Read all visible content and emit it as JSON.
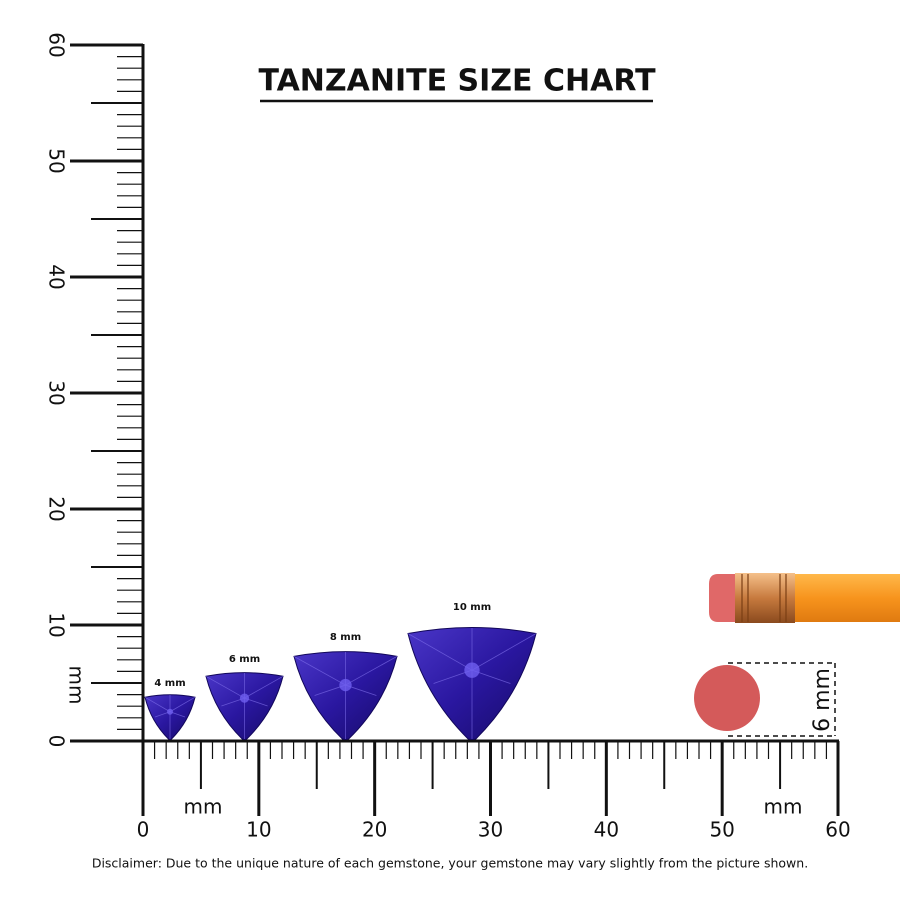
{
  "title": "TANZANITE SIZE CHART",
  "vertical_ruler": {
    "labels": [
      0,
      10,
      20,
      30,
      40,
      50,
      60
    ],
    "unit": "mm"
  },
  "horizontal_ruler": {
    "labels": [
      0,
      10,
      20,
      30,
      40,
      50,
      60
    ],
    "units": [
      "mm",
      "mm"
    ]
  },
  "gems": [
    {
      "label": "4 mm"
    },
    {
      "label": "6 mm"
    },
    {
      "label": "8 mm"
    },
    {
      "label": "10 mm"
    }
  ],
  "eraser": {
    "label": "6 mm"
  },
  "disclaimer": "Disclaimer: Due to the unique nature of each gemstone, your gemstone may vary slightly from the picture shown."
}
